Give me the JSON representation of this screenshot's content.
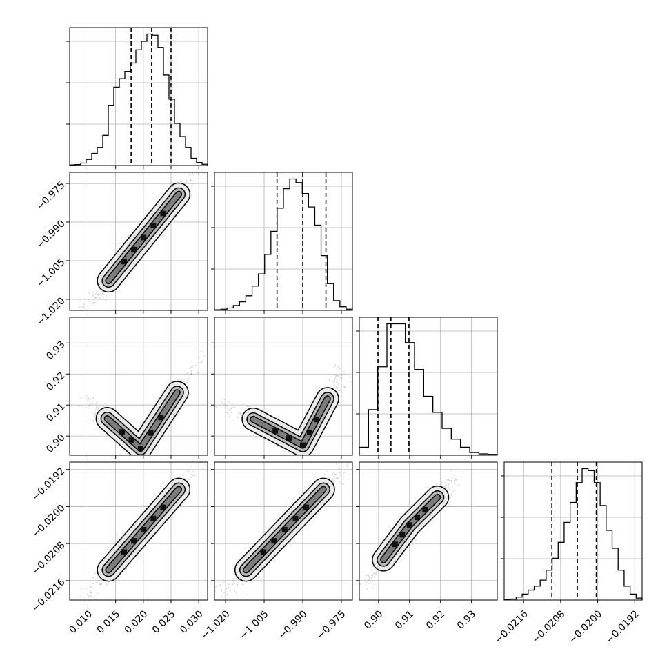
{
  "chart_data": {
    "type": "corner",
    "title": "",
    "parameters": [
      {
        "range": [
          0.0067,
          0.0316
        ],
        "ticks": [
          0.01,
          0.015,
          0.02,
          0.025,
          0.03
        ],
        "tick_labels": [
          "0.010",
          "0.015",
          "0.020",
          "0.025",
          "0.030"
        ],
        "quantiles": [
          0.0178,
          0.0215,
          0.025
        ]
      },
      {
        "range": [
          -1.0243,
          -0.9707
        ],
        "ticks": [
          -1.02,
          -1.005,
          -0.99,
          -0.975
        ],
        "tick_labels": [
          "−1.020",
          "−1.005",
          "−0.990",
          "−0.975"
        ],
        "quantiles": [
          -1.0,
          -0.99,
          -0.981
        ]
      },
      {
        "range": [
          0.8938,
          0.9383
        ],
        "ticks": [
          0.9,
          0.91,
          0.92,
          0.93
        ],
        "tick_labels": [
          "0.90",
          "0.91",
          "0.92",
          "0.93"
        ],
        "quantiles": [
          0.8998,
          0.904,
          0.9098
        ]
      },
      {
        "range": [
          -0.02202,
          -0.01904
        ],
        "ticks": [
          -0.0216,
          -0.0208,
          -0.02,
          -0.0192
        ],
        "tick_labels": [
          "−0.0216",
          "−0.0208",
          "−0.0200",
          "−0.0192"
        ],
        "quantiles": [
          -0.02099,
          -0.02044,
          -0.02003
        ]
      }
    ],
    "histograms": [
      [
        0.5,
        0.8,
        2,
        5,
        10,
        15,
        25,
        50,
        65,
        72,
        78,
        85,
        96,
        103,
        109,
        108,
        98,
        75,
        55,
        35,
        24,
        15,
        6,
        2.5,
        1
      ],
      [
        0.5,
        1,
        2,
        4,
        7,
        12,
        20,
        30,
        46,
        65,
        84,
        100,
        108,
        105,
        96,
        85,
        70,
        45,
        22,
        8,
        3,
        1
      ],
      [
        3,
        17,
        33,
        49,
        49,
        42,
        32,
        22,
        16,
        10,
        6,
        3,
        1,
        0.5,
        0.3
      ],
      [
        0.5,
        1,
        3,
        6,
        10,
        14,
        20,
        30,
        42,
        58,
        78,
        98,
        118,
        132,
        130,
        118,
        95,
        70,
        52,
        30,
        14,
        6,
        2
      ]
    ],
    "pairs": [
      {
        "row": 1,
        "col": 0,
        "kind": "linear",
        "xs": [
          0.0095,
          0.0306
        ],
        "ys": [
          -1.024,
          -0.968
        ]
      },
      {
        "row": 2,
        "col": 0,
        "kind": "vshape",
        "xs": [
          0.0095,
          0.0195,
          0.0305
        ],
        "ys": [
          0.912,
          0.896,
          0.926
        ]
      },
      {
        "row": 2,
        "col": 1,
        "kind": "vshape",
        "xs": [
          -1.022,
          -0.99,
          -0.974
        ],
        "ys": [
          0.911,
          0.897,
          0.922
        ]
      },
      {
        "row": 3,
        "col": 0,
        "kind": "linear",
        "xs": [
          0.0095,
          0.0306
        ],
        "ys": [
          -0.02195,
          -0.01905
        ]
      },
      {
        "row": 3,
        "col": 1,
        "kind": "linear",
        "xs": [
          -1.022,
          -0.972
        ],
        "ys": [
          -0.02195,
          -0.01905
        ]
      },
      {
        "row": 3,
        "col": 2,
        "kind": "lshape",
        "xs": [
          0.896,
          0.91,
          0.925
        ],
        "ys": [
          -0.02165,
          -0.0204,
          -0.0194
        ]
      }
    ]
  }
}
